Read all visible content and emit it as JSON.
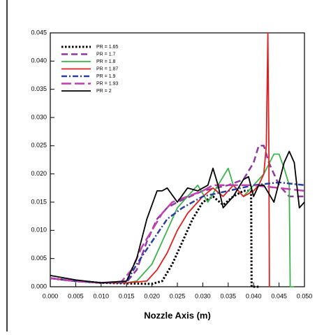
{
  "chart_data": {
    "type": "line",
    "xlabel": "Nozzle Axis (m)",
    "xlim": [
      0,
      0.05
    ],
    "ylim": [
      0,
      0.045
    ],
    "xticks": [
      {
        "value": 0,
        "label": "0.000"
      },
      {
        "value": 0.005,
        "label": "0.005"
      },
      {
        "value": 0.01,
        "label": "0.010"
      },
      {
        "value": 0.015,
        "label": "0.015"
      },
      {
        "value": 0.02,
        "label": "0.020"
      },
      {
        "value": 0.025,
        "label": "0.025"
      },
      {
        "value": 0.03,
        "label": "0.030"
      },
      {
        "value": 0.035,
        "label": "0.035"
      },
      {
        "value": 0.04,
        "label": "0.040"
      },
      {
        "value": 0.045,
        "label": "0.045"
      },
      {
        "value": 0.05,
        "label": "0.050"
      }
    ],
    "yticks": [
      {
        "value": 0,
        "label": "0.000"
      },
      {
        "value": 0.005,
        "label": "0.005"
      },
      {
        "value": 0.01,
        "label": "0.010"
      },
      {
        "value": 0.015,
        "label": "0.015"
      },
      {
        "value": 0.02,
        "label": "0.020"
      },
      {
        "value": 0.025,
        "label": "0.025"
      },
      {
        "value": 0.03,
        "label": "0.030"
      },
      {
        "value": 0.035,
        "label": "0.035"
      },
      {
        "value": 0.04,
        "label": "0.040"
      },
      {
        "value": 0.045,
        "label": "0.045"
      }
    ],
    "legend": "upper left",
    "series": [
      {
        "name": "PR = 1.65",
        "color": "#000000",
        "style": "dotted",
        "x": [
          0,
          0.005,
          0.01,
          0.015,
          0.02,
          0.022,
          0.024,
          0.026,
          0.028,
          0.03,
          0.032,
          0.034,
          0.036,
          0.038,
          0.0395,
          0.0396,
          0.041
        ],
        "values": [
          0.0015,
          0.001,
          0.0007,
          0.0006,
          0.0005,
          0.001,
          0.004,
          0.008,
          0.012,
          0.015,
          0.016,
          0.0145,
          0.016,
          0.017,
          0.017,
          0,
          0
        ]
      },
      {
        "name": "PR = 1.7",
        "color": "#8e3a9e",
        "style": "dashed",
        "x": [
          0,
          0.005,
          0.01,
          0.015,
          0.017,
          0.019,
          0.021,
          0.023,
          0.025,
          0.03,
          0.035,
          0.038,
          0.04,
          0.041,
          0.042,
          0.043,
          0.045,
          0.047,
          0.05
        ],
        "values": [
          0.0015,
          0.001,
          0.0007,
          0.0008,
          0.003,
          0.008,
          0.012,
          0.014,
          0.015,
          0.017,
          0.018,
          0.019,
          0.022,
          0.025,
          0.025,
          0.022,
          0.018,
          0.016,
          0.016
        ]
      },
      {
        "name": "PR = 1.8",
        "color": "#3cb44b",
        "style": "solid",
        "x": [
          0,
          0.005,
          0.01,
          0.015,
          0.017,
          0.02,
          0.022,
          0.025,
          0.027,
          0.029,
          0.031,
          0.033,
          0.035,
          0.036,
          0.038,
          0.04,
          0.042,
          0.044,
          0.045,
          0.046,
          0.047,
          0.0472,
          0.048
        ],
        "values": [
          0.0015,
          0.001,
          0.0007,
          0.0007,
          0.001,
          0.004,
          0.008,
          0.014,
          0.016,
          0.018,
          0.015,
          0.018,
          0.021,
          0.018,
          0.016,
          0.018,
          0.02,
          0.0235,
          0.0235,
          0.021,
          0.018,
          0,
          0
        ]
      },
      {
        "name": "PR = 1.87",
        "color": "#e02020",
        "style": "solid",
        "x": [
          0,
          0.005,
          0.01,
          0.015,
          0.019,
          0.021,
          0.023,
          0.025,
          0.027,
          0.03,
          0.032,
          0.034,
          0.036,
          0.038,
          0.04,
          0.041,
          0.042,
          0.0425,
          0.0428,
          0.043,
          0.0431,
          0.0433
        ],
        "values": [
          0.0015,
          0.001,
          0.0007,
          0.0007,
          0.001,
          0.003,
          0.006,
          0.01,
          0.013,
          0.016,
          0.0175,
          0.016,
          0.018,
          0.016,
          0.017,
          0.018,
          0.02,
          0.025,
          0.045,
          0.025,
          0,
          0
        ]
      },
      {
        "name": "PR = 1.9",
        "color": "#2a3f9e",
        "style": "dashdot",
        "x": [
          0,
          0.005,
          0.01,
          0.015,
          0.017,
          0.02,
          0.023,
          0.026,
          0.03,
          0.035,
          0.04,
          0.045,
          0.05
        ],
        "values": [
          0.0015,
          0.001,
          0.0007,
          0.0008,
          0.004,
          0.008,
          0.012,
          0.014,
          0.016,
          0.017,
          0.018,
          0.0185,
          0.018
        ]
      },
      {
        "name": "PR = 1.93",
        "color": "#c040b0",
        "style": "longdash",
        "x": [
          0,
          0.005,
          0.01,
          0.014,
          0.016,
          0.018,
          0.02,
          0.022,
          0.024,
          0.027,
          0.03,
          0.032,
          0.035,
          0.04,
          0.045,
          0.05
        ],
        "values": [
          0.0015,
          0.001,
          0.0007,
          0.0009,
          0.003,
          0.007,
          0.01,
          0.013,
          0.015,
          0.016,
          0.017,
          0.018,
          0.018,
          0.018,
          0.0175,
          0.017
        ]
      },
      {
        "name": "PR = 2",
        "color": "#000000",
        "style": "solid",
        "x": [
          0,
          0.005,
          0.01,
          0.015,
          0.017,
          0.019,
          0.021,
          0.022,
          0.023,
          0.025,
          0.027,
          0.029,
          0.031,
          0.032,
          0.033,
          0.034,
          0.036,
          0.038,
          0.039,
          0.04,
          0.041,
          0.042,
          0.044,
          0.046,
          0.047,
          0.048,
          0.049,
          0.05
        ],
        "values": [
          0.002,
          0.0012,
          0.0007,
          0.001,
          0.005,
          0.012,
          0.017,
          0.017,
          0.0175,
          0.015,
          0.0175,
          0.017,
          0.018,
          0.021,
          0.018,
          0.014,
          0.016,
          0.019,
          0.0195,
          0.016,
          0.018,
          0.018,
          0.015,
          0.022,
          0.024,
          0.022,
          0.014,
          0.015
        ]
      }
    ]
  }
}
